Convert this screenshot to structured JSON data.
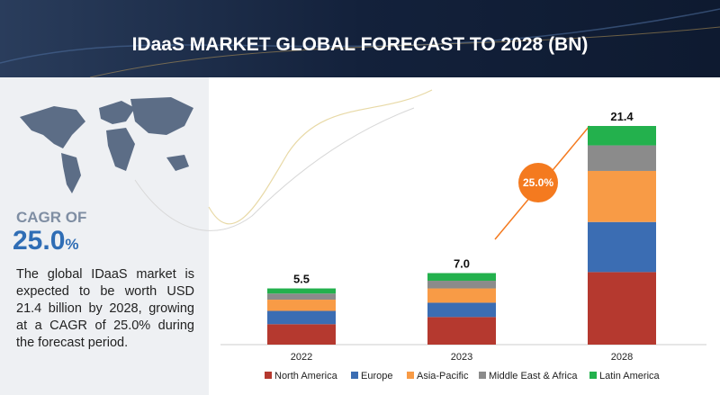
{
  "chart_data": {
    "type": "stacked-bar",
    "title": "IDaaS MARKET GLOBAL FORECAST TO 2028 (BN)",
    "categories": [
      "2022",
      "2023",
      "2028"
    ],
    "series": [
      {
        "name": "North America",
        "color": "#b5392f",
        "values": [
          2.0,
          2.7,
          7.1
        ]
      },
      {
        "name": "Europe",
        "color": "#3b6db3",
        "values": [
          1.3,
          1.4,
          4.9
        ]
      },
      {
        "name": "Asia-Pacific",
        "color": "#f89b46",
        "values": [
          1.1,
          1.4,
          5.0
        ]
      },
      {
        "name": "Middle East & Africa",
        "color": "#8b8b8b",
        "values": [
          0.6,
          0.75,
          2.5
        ]
      },
      {
        "name": "Latin America",
        "color": "#23b14d",
        "values": [
          0.5,
          0.75,
          1.9
        ]
      }
    ],
    "totals": {
      "values": [
        5.5,
        7,
        21.4
      ],
      "value_labels": [
        "5.5",
        "7.0",
        "21.4"
      ]
    },
    "badge": "25.0%",
    "cagr": {
      "label": "CAGR OF",
      "value": "25.0",
      "unit": "%"
    },
    "description": "The global IDaaS market is expected to be worth USD 21.4 billion by 2028, growing at a CAGR of 25.0% during the forecast period."
  }
}
